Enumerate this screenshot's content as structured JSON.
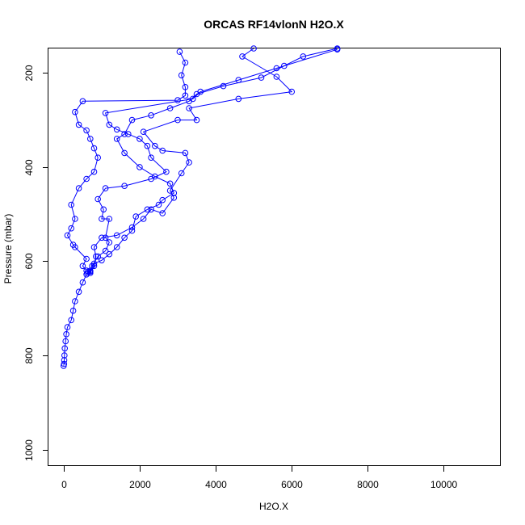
{
  "chart_data": {
    "type": "line",
    "title": "ORCAS RF14vlonN H2O.X",
    "xlabel": "H2O.X",
    "ylabel": "Pressure (mbar)",
    "xlim": [
      -400,
      11500
    ],
    "ylim": [
      1035,
      148
    ],
    "y_reversed": true,
    "x_ticks": [
      0,
      2000,
      4000,
      6000,
      8000,
      10000
    ],
    "x_tick_labels": [
      "0",
      "2000",
      "4000",
      "6000",
      "8000",
      "10000"
    ],
    "y_ticks": [
      200,
      400,
      600,
      800,
      1000
    ],
    "y_tick_labels": [
      "200",
      "400",
      "600",
      "800",
      "1000"
    ],
    "grid": false,
    "legend": "none",
    "color": "#0000ff",
    "series": [
      {
        "points": [
          [
            0,
            822
          ],
          [
            10,
            818
          ],
          [
            15,
            810
          ],
          [
            20,
            800
          ],
          [
            30,
            785
          ],
          [
            50,
            770
          ],
          [
            70,
            755
          ],
          [
            100,
            740
          ],
          [
            200,
            725
          ],
          [
            250,
            705
          ],
          [
            300,
            685
          ],
          [
            400,
            665
          ],
          [
            500,
            645
          ],
          [
            600,
            628
          ],
          [
            700,
            622
          ],
          [
            800,
            610
          ],
          [
            850,
            590
          ],
          [
            800,
            570
          ],
          [
            1000,
            550
          ],
          [
            1400,
            545
          ],
          [
            1800,
            528
          ],
          [
            2100,
            510
          ],
          [
            2300,
            490
          ],
          [
            2600,
            498
          ],
          [
            2900,
            465
          ],
          [
            2800,
            450
          ],
          [
            3100,
            413
          ],
          [
            3300,
            390
          ],
          [
            3200,
            370
          ],
          [
            2600,
            365
          ],
          [
            2400,
            355
          ],
          [
            2100,
            325
          ],
          [
            3000,
            300
          ],
          [
            3500,
            300
          ],
          [
            3300,
            275
          ],
          [
            4600,
            255
          ],
          [
            6000,
            240
          ],
          [
            5600,
            208
          ],
          [
            4700,
            165
          ],
          [
            5000,
            148
          ]
        ]
      },
      {
        "points": [
          [
            650,
            622
          ],
          [
            700,
            625
          ],
          [
            750,
            610
          ],
          [
            900,
            590
          ],
          [
            1100,
            578
          ],
          [
            1200,
            560
          ],
          [
            1100,
            550
          ],
          [
            1200,
            510
          ],
          [
            1000,
            510
          ],
          [
            1050,
            490
          ],
          [
            900,
            468
          ],
          [
            1100,
            445
          ],
          [
            1600,
            440
          ],
          [
            2300,
            425
          ],
          [
            2700,
            410
          ],
          [
            2300,
            380
          ],
          [
            2200,
            355
          ],
          [
            2000,
            340
          ],
          [
            1700,
            330
          ],
          [
            1400,
            320
          ],
          [
            1200,
            310
          ],
          [
            1100,
            285
          ],
          [
            3400,
            255
          ],
          [
            3600,
            240
          ],
          [
            4600,
            215
          ],
          [
            5600,
            190
          ],
          [
            7200,
            150
          ]
        ]
      },
      {
        "points": [
          [
            620,
            625
          ],
          [
            700,
            620
          ],
          [
            800,
            605
          ],
          [
            1000,
            598
          ],
          [
            1200,
            585
          ],
          [
            1400,
            570
          ],
          [
            1600,
            550
          ],
          [
            1800,
            535
          ],
          [
            1900,
            505
          ],
          [
            2200,
            490
          ],
          [
            2500,
            480
          ],
          [
            2600,
            470
          ],
          [
            2900,
            455
          ],
          [
            2800,
            435
          ],
          [
            2400,
            420
          ],
          [
            2000,
            400
          ],
          [
            1600,
            370
          ],
          [
            1400,
            340
          ],
          [
            1600,
            330
          ],
          [
            1800,
            300
          ],
          [
            2300,
            290
          ],
          [
            2800,
            275
          ],
          [
            3300,
            260
          ],
          [
            3500,
            245
          ],
          [
            4200,
            228
          ],
          [
            5200,
            210
          ],
          [
            5800,
            185
          ],
          [
            6300,
            165
          ],
          [
            7200,
            148
          ]
        ]
      },
      {
        "points": [
          [
            600,
            620
          ],
          [
            500,
            610
          ],
          [
            600,
            595
          ],
          [
            300,
            570
          ],
          [
            250,
            565
          ],
          [
            100,
            545
          ],
          [
            200,
            530
          ],
          [
            300,
            510
          ],
          [
            200,
            480
          ],
          [
            400,
            445
          ],
          [
            600,
            425
          ],
          [
            800,
            410
          ],
          [
            900,
            380
          ],
          [
            800,
            360
          ],
          [
            700,
            340
          ],
          [
            600,
            322
          ],
          [
            400,
            310
          ],
          [
            300,
            283
          ],
          [
            500,
            260
          ],
          [
            3000,
            258
          ],
          [
            3200,
            248
          ],
          [
            3200,
            230
          ],
          [
            3100,
            205
          ],
          [
            3200,
            178
          ],
          [
            3050,
            155
          ]
        ]
      }
    ]
  }
}
